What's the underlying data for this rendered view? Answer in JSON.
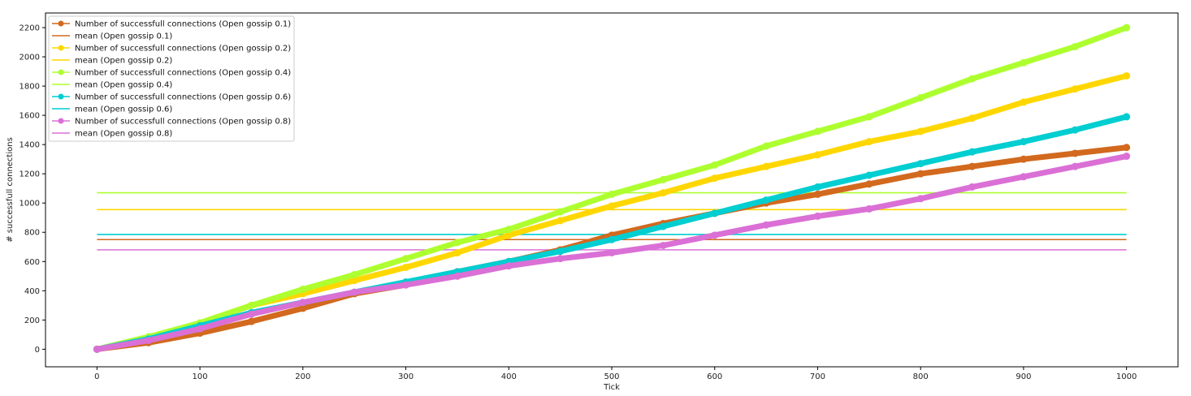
{
  "chart_data": {
    "type": "line",
    "title": "",
    "xlabel": "Tick",
    "ylabel": "# successfull connections",
    "xlim": [
      -50,
      1050
    ],
    "ylim": [
      -120,
      2300
    ],
    "xticks": [
      0,
      100,
      200,
      300,
      400,
      500,
      600,
      700,
      800,
      900,
      1000
    ],
    "yticks": [
      0,
      200,
      400,
      600,
      800,
      1000,
      1200,
      1400,
      1600,
      1800,
      2000,
      2200
    ],
    "grid": false,
    "legend_position": "top-left",
    "x": [
      0,
      50,
      100,
      150,
      200,
      250,
      300,
      350,
      400,
      450,
      500,
      550,
      600,
      650,
      700,
      750,
      800,
      850,
      900,
      950,
      1000
    ],
    "series": [
      {
        "name": "Number of successfull connections (Open gossip 0.1)",
        "color": "#d2691e",
        "kind": "markers",
        "values": [
          0,
          45,
          110,
          190,
          280,
          380,
          440,
          530,
          600,
          680,
          780,
          860,
          930,
          1000,
          1060,
          1130,
          1200,
          1250,
          1300,
          1340,
          1380
        ]
      },
      {
        "name": "mean (Open gossip 0.1)",
        "color": "#d2691e",
        "kind": "mean",
        "value": 750
      },
      {
        "name": "Number of successfull connections (Open gossip 0.2)",
        "color": "#ffd700",
        "kind": "markers",
        "values": [
          0,
          80,
          180,
          300,
          380,
          470,
          560,
          660,
          780,
          880,
          980,
          1070,
          1170,
          1250,
          1330,
          1420,
          1490,
          1580,
          1690,
          1780,
          1870
        ]
      },
      {
        "name": "mean (Open gossip 0.2)",
        "color": "#ffd700",
        "kind": "mean",
        "value": 955
      },
      {
        "name": "Number of successfull connections (Open gossip 0.4)",
        "color": "#adff2f",
        "kind": "markers",
        "values": [
          0,
          85,
          180,
          300,
          410,
          510,
          620,
          730,
          820,
          940,
          1060,
          1160,
          1260,
          1390,
          1490,
          1590,
          1720,
          1850,
          1960,
          2070,
          2200
        ]
      },
      {
        "name": "mean (Open gossip 0.4)",
        "color": "#adff2f",
        "kind": "mean",
        "value": 1070
      },
      {
        "name": "Number of successfull connections (Open gossip 0.6)",
        "color": "#00ced1",
        "kind": "markers",
        "values": [
          0,
          70,
          160,
          250,
          320,
          390,
          460,
          530,
          600,
          670,
          750,
          840,
          930,
          1020,
          1110,
          1190,
          1270,
          1350,
          1420,
          1500,
          1590
        ]
      },
      {
        "name": "mean (Open gossip 0.6)",
        "color": "#00ced1",
        "kind": "mean",
        "value": 785
      },
      {
        "name": "Number of successfull connections (Open gossip 0.8)",
        "color": "#da70d6",
        "kind": "markers",
        "values": [
          0,
          60,
          140,
          240,
          320,
          390,
          440,
          500,
          570,
          620,
          660,
          710,
          780,
          850,
          910,
          960,
          1030,
          1110,
          1180,
          1250,
          1320
        ]
      },
      {
        "name": "mean (Open gossip 0.8)",
        "color": "#da70d6",
        "kind": "mean",
        "value": 680
      }
    ]
  }
}
